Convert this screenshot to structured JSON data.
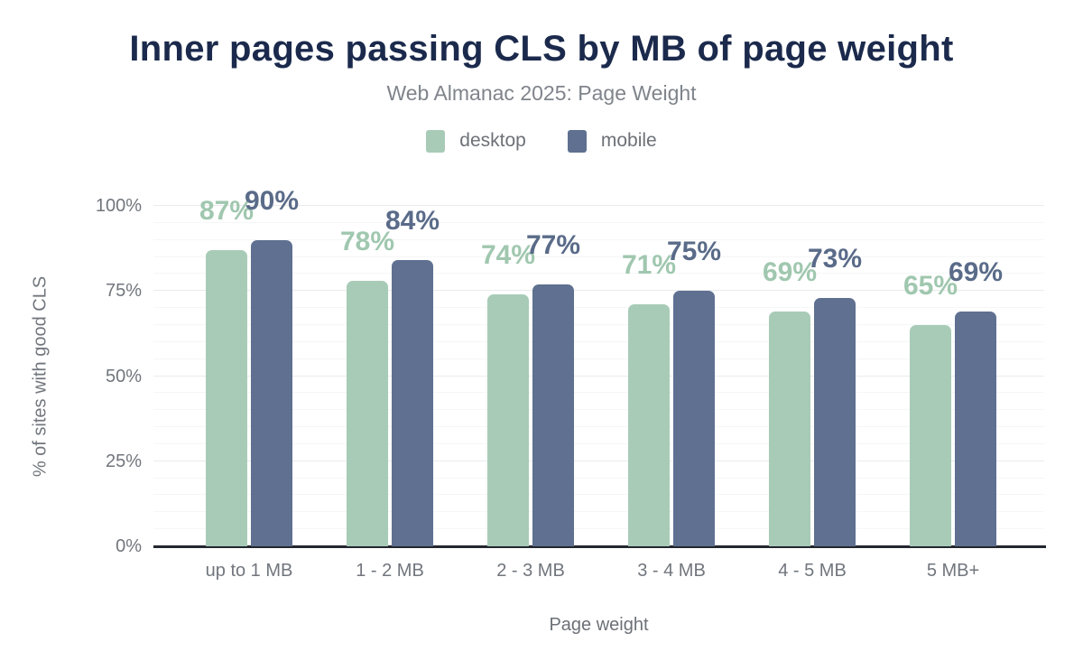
{
  "title": "Inner pages passing CLS by MB of page weight",
  "subtitle": "Web Almanac 2025: Page Weight",
  "legend": [
    {
      "label": "desktop",
      "color": "#a8cbb7"
    },
    {
      "label": "mobile",
      "color": "#5f7090"
    }
  ],
  "colors": {
    "title_text": "#1b2a4c",
    "subtitle_text": "#7f848b",
    "axis_text": "#71767d",
    "legend_text": "#6c7177",
    "desktop_bar": "#a8cbb7",
    "mobile_bar": "#5f7090",
    "desktop_value_label": "#a0c7af",
    "mobile_value_label": "#5a6b89",
    "baseline": "#23272e",
    "grid_major": "#e9ebec",
    "grid_minor": "#f5f6f6",
    "background": "#ffffff"
  },
  "chart_data": {
    "type": "bar",
    "title": "Inner pages passing CLS by MB of page weight",
    "subtitle": "Web Almanac 2025: Page Weight",
    "categories": [
      "up to 1 MB",
      "1 - 2 MB",
      "2 - 3 MB",
      "3 - 4 MB",
      "4 - 5 MB",
      "5 MB+"
    ],
    "series": [
      {
        "name": "desktop",
        "values": [
          87,
          78,
          74,
          71,
          69,
          65
        ]
      },
      {
        "name": "mobile",
        "values": [
          90,
          84,
          77,
          75,
          73,
          69
        ]
      }
    ],
    "value_suffix": "%",
    "data_labels": true,
    "xlabel": "Page weight",
    "ylabel": "% of sites with good CLS",
    "ylim": [
      0,
      100
    ],
    "yticks": [
      0,
      25,
      50,
      75,
      100
    ],
    "ytick_labels": [
      "0%",
      "25%",
      "50%",
      "75%",
      "100%"
    ],
    "minor_grid_step": 5,
    "grid": true,
    "legend_position": "top"
  }
}
